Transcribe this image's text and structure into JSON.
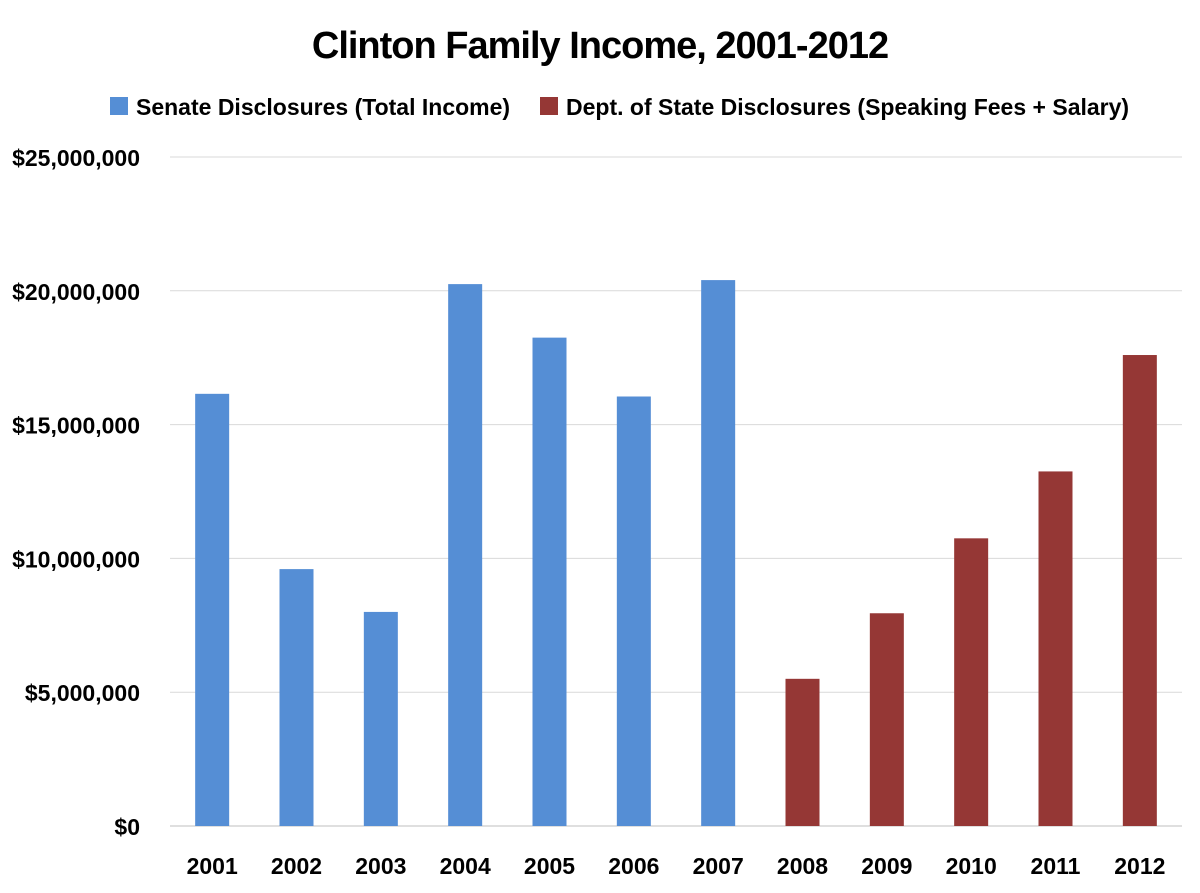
{
  "chart_data": {
    "type": "bar",
    "title": "Clinton Family Income, 2001-2012",
    "xlabel": "",
    "ylabel": "",
    "categories": [
      "2001",
      "2002",
      "2003",
      "2004",
      "2005",
      "2006",
      "2007",
      "2008",
      "2009",
      "2010",
      "2011",
      "2012"
    ],
    "series": [
      {
        "name": "Senate Disclosures (Total Income)",
        "color": "#558ed5",
        "values": [
          16150000,
          9600000,
          8000000,
          20250000,
          18250000,
          16050000,
          20400000,
          null,
          null,
          null,
          null,
          null
        ]
      },
      {
        "name": "Dept. of State Disclosures (Speaking Fees + Salary)",
        "color": "#953735",
        "values": [
          null,
          null,
          null,
          null,
          null,
          null,
          null,
          5500000,
          7950000,
          10750000,
          13250000,
          17600000
        ]
      }
    ],
    "ylim": [
      0,
      25000000
    ],
    "yticks": [
      0,
      5000000,
      10000000,
      15000000,
      20000000,
      25000000
    ],
    "ytick_labels": [
      "$0",
      "$5,000,000",
      "$10,000,000",
      "$15,000,000",
      "$20,000,000",
      "$25,000,000"
    ],
    "grid": true,
    "legend_position": "top"
  }
}
